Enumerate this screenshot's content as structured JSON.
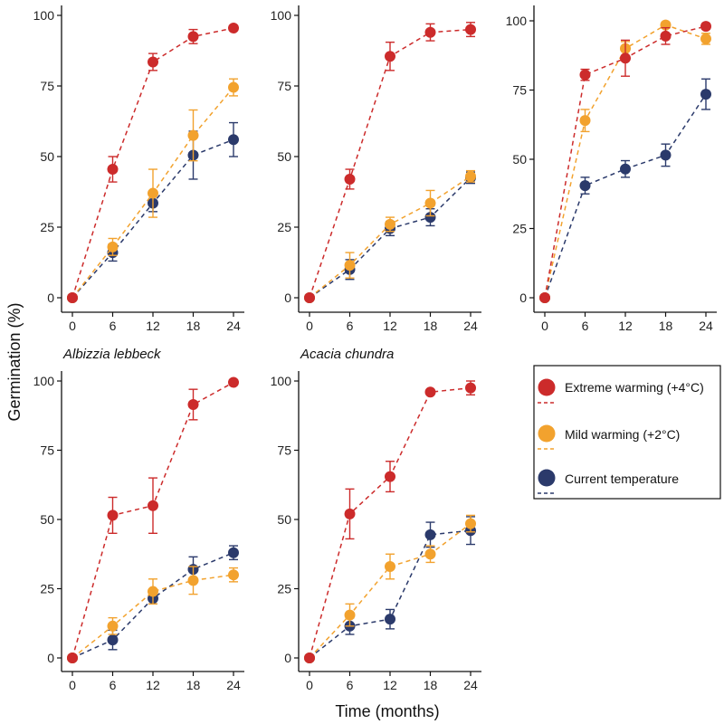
{
  "chart_data": {
    "type": "line",
    "xlabel": "Time (months)",
    "ylabel": "Germination (%)",
    "x": [
      0,
      6,
      12,
      18,
      24
    ],
    "xticks": [
      "0",
      "6",
      "12",
      "18",
      "24"
    ],
    "yticks": [
      "0",
      "25",
      "50",
      "75",
      "100"
    ],
    "legend": [
      {
        "key": "extreme",
        "label": "Extreme warming (+4°C)",
        "color": "#cc2b2b"
      },
      {
        "key": "mild",
        "label": "Mild warming (+2°C)",
        "color": "#f2a22e"
      },
      {
        "key": "current",
        "label": "Current temperature",
        "color": "#2b3a6b"
      }
    ],
    "panels": [
      {
        "title": "",
        "ylim": [
          0,
          100
        ],
        "series": {
          "extreme": {
            "values": [
              0,
              45.5,
              83.5,
              92.5,
              95.5
            ],
            "errors": [
              0,
              4.5,
              3,
              2.5,
              0.5
            ]
          },
          "mild": {
            "values": [
              0,
              18,
              37,
              57.5,
              74.5
            ],
            "errors": [
              0,
              3,
              8.5,
              9,
              3
            ]
          },
          "current": {
            "values": [
              0,
              16,
              33.5,
              50.5,
              56
            ],
            "errors": [
              0,
              3,
              3,
              8.5,
              6
            ]
          }
        }
      },
      {
        "title": "",
        "ylim": [
          0,
          100
        ],
        "series": {
          "extreme": {
            "values": [
              0,
              42,
              85.5,
              94,
              95
            ],
            "errors": [
              0,
              3.5,
              5,
              3,
              2.5
            ]
          },
          "mild": {
            "values": [
              0,
              11.5,
              26,
              33.5,
              43
            ],
            "errors": [
              0,
              4.5,
              2.5,
              4.5,
              2
            ]
          },
          "current": {
            "values": [
              0,
              10,
              24.5,
              28.5,
              42.5
            ],
            "errors": [
              0,
              3.5,
              2.5,
              3,
              2
            ]
          }
        }
      },
      {
        "title": "",
        "ylim": [
          0,
          100
        ],
        "series": {
          "extreme": {
            "values": [
              0,
              80.5,
              86.5,
              94.5,
              98
            ],
            "errors": [
              0,
              2,
              6.5,
              3,
              1
            ]
          },
          "mild": {
            "values": [
              0,
              64,
              90,
              98.5,
              93.5
            ],
            "errors": [
              0,
              4,
              2.5,
              1,
              2
            ]
          },
          "current": {
            "values": [
              0,
              40.5,
              46.5,
              51.5,
              73.5
            ],
            "errors": [
              0,
              3,
              3,
              4,
              5.5
            ]
          }
        }
      },
      {
        "title": "Albizzia lebbeck",
        "ylim": [
          0,
          100
        ],
        "series": {
          "extreme": {
            "values": [
              0,
              51.5,
              55,
              91.5,
              99.5
            ],
            "errors": [
              0,
              6.5,
              10,
              5.5,
              0.5
            ]
          },
          "mild": {
            "values": [
              0,
              11.5,
              24,
              28,
              30
            ],
            "errors": [
              0,
              3,
              4.5,
              5,
              2.5
            ]
          },
          "current": {
            "values": [
              0,
              6.5,
              21.5,
              32,
              38
            ],
            "errors": [
              0,
              3.5,
              2,
              4.5,
              2.5
            ]
          }
        }
      },
      {
        "title": "Acacia chundra",
        "ylim": [
          0,
          100
        ],
        "series": {
          "extreme": {
            "values": [
              0,
              52,
              65.5,
              96,
              97.5
            ],
            "errors": [
              0,
              9,
              5.5,
              0.5,
              2.5
            ]
          },
          "mild": {
            "values": [
              0,
              15.5,
              33,
              37.5,
              48.5
            ],
            "errors": [
              0,
              4,
              4.5,
              3,
              3
            ]
          },
          "current": {
            "values": [
              0,
              11.5,
              14,
              44.5,
              46
            ],
            "errors": [
              0,
              3,
              3.5,
              4.5,
              5
            ]
          }
        }
      }
    ]
  }
}
